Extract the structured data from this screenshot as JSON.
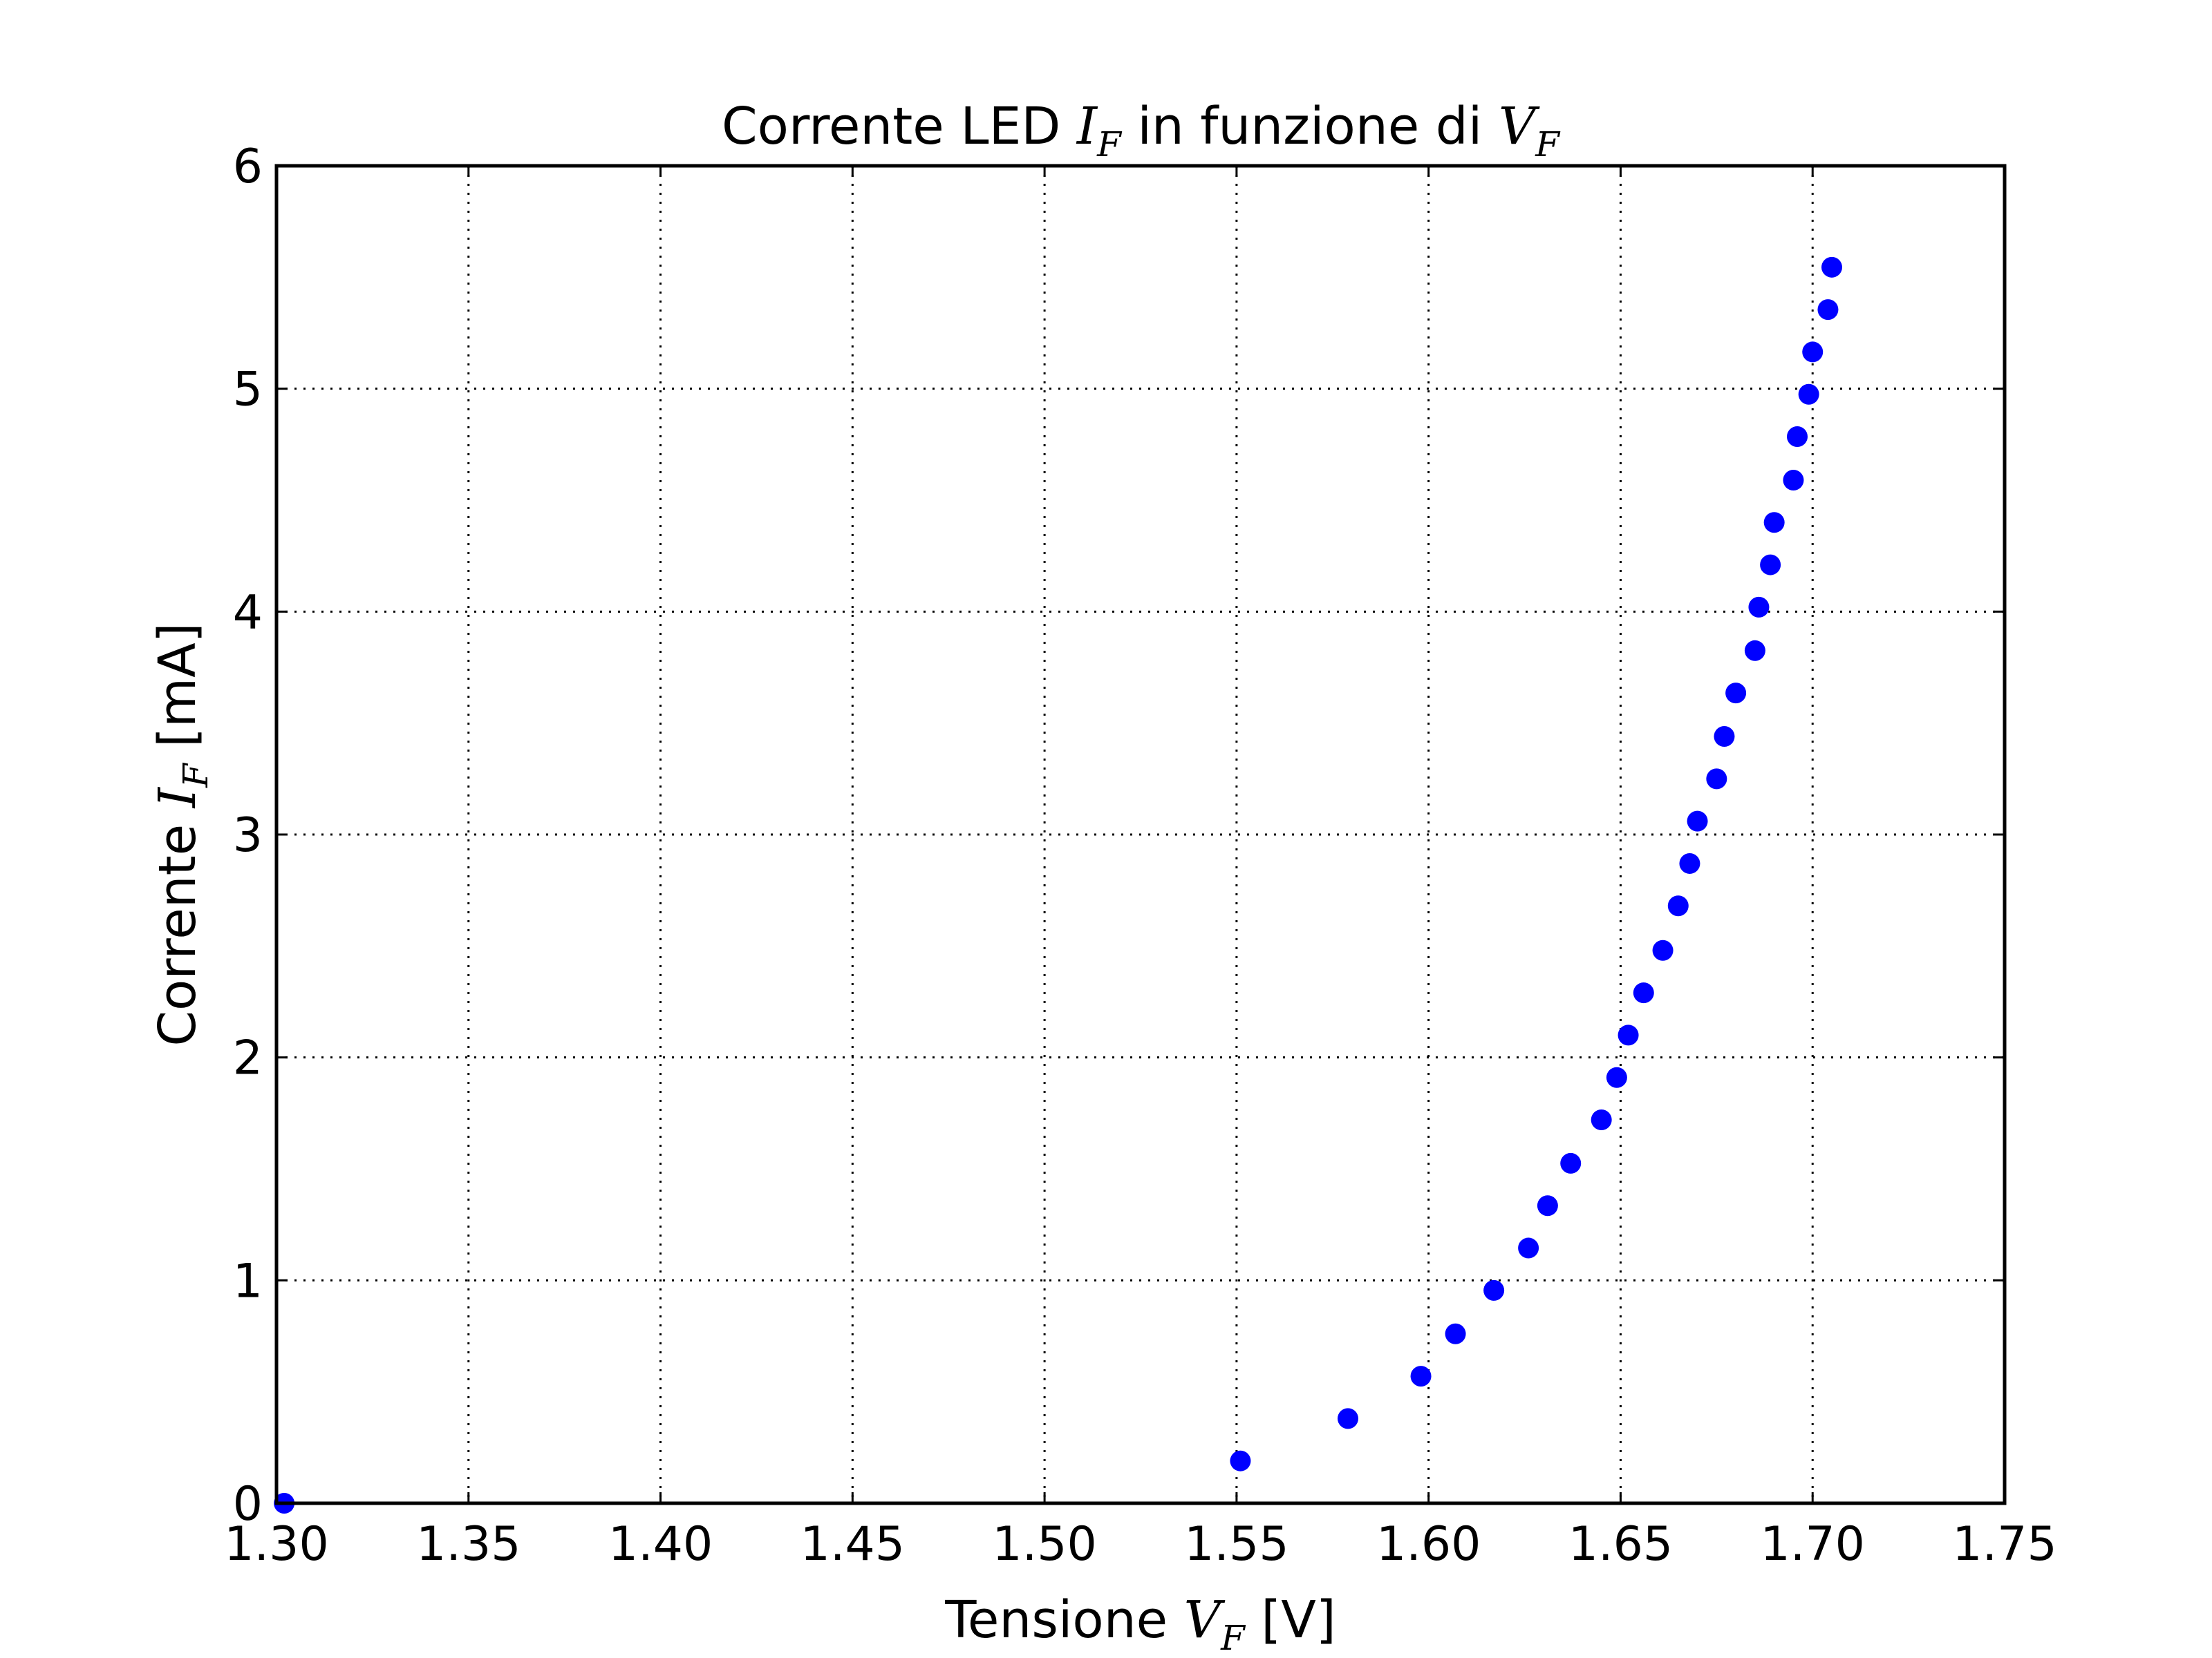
{
  "chart_data": {
    "type": "scatter",
    "title_prefix": "Corrente LED ",
    "title_mid": " in funzione di ",
    "title_var1": "I",
    "title_var2": "V",
    "subscript": "F",
    "xlabel_prefix": "Tensione ",
    "xlabel_var": "V",
    "xlabel_suffix": " [V]",
    "ylabel_prefix": "Corrente ",
    "ylabel_var": "I",
    "ylabel_suffix": " [mA]",
    "xlim": [
      1.3,
      1.75
    ],
    "ylim": [
      0,
      6
    ],
    "xticks": [
      "1.30",
      "1.35",
      "1.40",
      "1.45",
      "1.50",
      "1.55",
      "1.60",
      "1.65",
      "1.70",
      "1.75"
    ],
    "yticks": [
      "0",
      "1",
      "2",
      "3",
      "4",
      "5",
      "6"
    ],
    "grid": true,
    "point_color": "#0000ff",
    "x": [
      1.302,
      1.551,
      1.579,
      1.598,
      1.607,
      1.617,
      1.626,
      1.631,
      1.637,
      1.645,
      1.649,
      1.652,
      1.656,
      1.661,
      1.665,
      1.668,
      1.67,
      1.675,
      1.677,
      1.68,
      1.685,
      1.686,
      1.689,
      1.69,
      1.695,
      1.696,
      1.699,
      1.7,
      1.704,
      1.705
    ],
    "y": [
      0.0,
      0.19,
      0.38,
      0.57,
      0.76,
      0.955,
      1.145,
      1.335,
      1.525,
      1.72,
      1.91,
      2.1,
      2.29,
      2.48,
      2.68,
      2.87,
      3.06,
      3.25,
      3.44,
      3.635,
      3.825,
      4.02,
      4.21,
      4.4,
      4.59,
      4.785,
      4.975,
      5.165,
      5.355,
      5.545
    ]
  }
}
